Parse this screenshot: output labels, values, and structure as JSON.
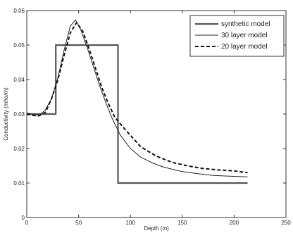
{
  "chart_data": {
    "type": "line",
    "xlabel": "Depth (m)",
    "ylabel": "Conductivity (mho/m)",
    "xlim": [
      0,
      250
    ],
    "ylim": [
      0,
      0.06
    ],
    "x_ticks": [
      0,
      50,
      100,
      150,
      200,
      250
    ],
    "y_ticks": [
      0,
      0.01,
      0.02,
      0.03,
      0.04,
      0.05,
      0.06
    ],
    "x_tick_labels": [
      "0",
      "50",
      "100",
      "150",
      "200",
      "250"
    ],
    "y_tick_labels": [
      "0",
      "0.01",
      "0.02",
      "0.03",
      "0.04",
      "0.05",
      "0.06"
    ],
    "grid": false,
    "legend_position": "top-right",
    "series": [
      {
        "name": "synthetic model",
        "style": "solid-thick",
        "color": "#555555",
        "x": [
          0,
          28,
          28,
          88,
          88,
          213
        ],
        "y": [
          0.03,
          0.03,
          0.05,
          0.05,
          0.01,
          0.01
        ]
      },
      {
        "name": "30 layer model",
        "style": "solid-thin",
        "color": "#222222",
        "x": [
          0,
          6,
          12,
          18,
          24,
          30,
          36,
          42,
          47,
          52,
          58,
          64,
          70,
          76,
          82,
          90,
          100,
          110,
          120,
          130,
          140,
          150,
          165,
          180,
          195,
          213
        ],
        "y": [
          0.0303,
          0.0299,
          0.0297,
          0.0312,
          0.0345,
          0.0405,
          0.0485,
          0.0555,
          0.0573,
          0.0545,
          0.0495,
          0.044,
          0.0385,
          0.0335,
          0.029,
          0.024,
          0.02,
          0.0175,
          0.016,
          0.0148,
          0.014,
          0.0133,
          0.0127,
          0.0122,
          0.012,
          0.0118
        ]
      },
      {
        "name": "20 layer model",
        "style": "dashed-thick",
        "color": "#111111",
        "x": [
          0,
          6,
          12,
          18,
          24,
          30,
          36,
          42,
          48,
          54,
          60,
          66,
          72,
          78,
          85,
          95,
          110,
          125,
          140,
          155,
          170,
          185,
          200,
          213
        ],
        "y": [
          0.03,
          0.0296,
          0.0295,
          0.0305,
          0.0345,
          0.04,
          0.047,
          0.0535,
          0.0565,
          0.054,
          0.049,
          0.0435,
          0.038,
          0.0335,
          0.029,
          0.0255,
          0.0205,
          0.0178,
          0.016,
          0.015,
          0.0142,
          0.0138,
          0.0135,
          0.013
        ]
      }
    ]
  }
}
